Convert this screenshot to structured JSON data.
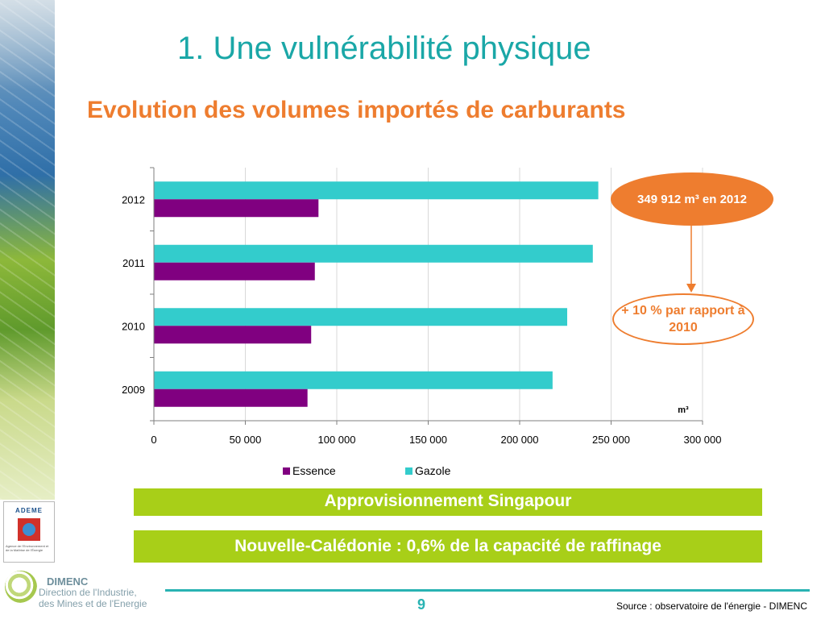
{
  "slide": {
    "title": "1. Une vulnérabilité physique",
    "subtitle": "Evolution des volumes importés de carburants",
    "page_number": "9",
    "source": "Source : observatoire de l'énergie - DIMENC"
  },
  "callouts": {
    "total_2012": "349 912 m³ en 2012",
    "growth": "+ 10 % par rapport à 2010"
  },
  "banners": {
    "supply": "Approvisionnement Singapour",
    "refining": "Nouvelle-Calédonie : 0,6% de la capacité de raffinage"
  },
  "logos": {
    "ademe": "ADEME",
    "ademe_sub": "Agence de l'Environnement et de la Maîtrise de l'Énergie",
    "dimenc": "DIMENC",
    "dimenc_line1": "Direction de l'Industrie,",
    "dimenc_line2": "des Mines et de l'Energie"
  },
  "colors": {
    "title": "#1aa7a7",
    "subtitle": "#ee7d2f",
    "essence": "#800080",
    "gazole": "#33cccc",
    "banner": "#a8cf18"
  },
  "chart_data": {
    "type": "bar",
    "orientation": "horizontal",
    "categories": [
      "2009",
      "2010",
      "2011",
      "2012"
    ],
    "series": [
      {
        "name": "Essence",
        "values": [
          84000,
          86000,
          88000,
          90000
        ]
      },
      {
        "name": "Gazole",
        "values": [
          218000,
          226000,
          240000,
          243000
        ]
      }
    ],
    "xlim": [
      0,
      300000
    ],
    "xticks": [
      "0",
      "50 000",
      "100 000",
      "150 000",
      "200 000",
      "250 000",
      "300 000"
    ],
    "unit": "m³",
    "legend_position": "bottom",
    "grid": true
  }
}
